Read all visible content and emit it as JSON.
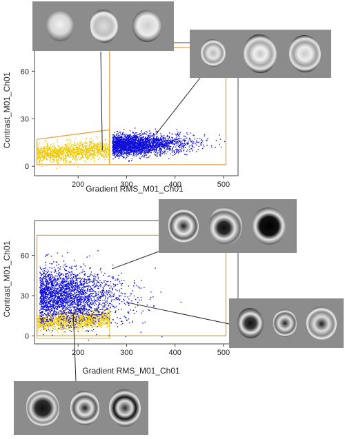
{
  "colors": {
    "gate": "#e8a23a",
    "gate_inner": "#e6d24a",
    "high_series": "#1010d8",
    "low_series": "#f0c800",
    "strip_bg": "#8c8c8c"
  },
  "chart_data": [
    {
      "type": "scatter",
      "title": "",
      "xlabel": "Gradient RMS_M01_Ch01",
      "ylabel": "Contrast_M01_Ch01",
      "xlim": [
        110,
        530
      ],
      "ylim": [
        -6,
        78
      ],
      "xticks": [
        "200",
        "300",
        "400",
        "500"
      ],
      "yticks": [
        "0",
        "30",
        "60"
      ],
      "grid": false,
      "series": [
        {
          "color": "#f0c800",
          "x_range": [
            115,
            265
          ],
          "y_center": 8,
          "density": "medium"
        },
        {
          "color": "#1010d8",
          "x_range": [
            265,
            500
          ],
          "y_center": 14,
          "density": "high"
        }
      ],
      "gates": [
        {
          "color": "#e8a23a",
          "points": [
            [
              115,
              1
            ],
            [
              265,
              1
            ],
            [
              265,
              23
            ],
            [
              115,
              17
            ]
          ]
        },
        {
          "color": "#e8a23a",
          "points": [
            [
              265,
              1
            ],
            [
              505,
              1
            ],
            [
              505,
              75
            ],
            [
              265,
              75
            ]
          ]
        }
      ],
      "image_groups": [
        {
          "cells": 3,
          "style": "bright",
          "target": [
            250,
            10
          ]
        },
        {
          "cells": 3,
          "style": "textured",
          "target": [
            360,
            20
          ]
        }
      ]
    },
    {
      "type": "scatter",
      "title": "",
      "xlabel": "Gradient RMS_M01_Ch01",
      "ylabel": "Contrast_M01_Ch01",
      "xlim": [
        110,
        530
      ],
      "ylim": [
        -6,
        86
      ],
      "xticks": [
        "200",
        "300",
        "400",
        "500"
      ],
      "yticks": [
        "0",
        "30",
        "60"
      ],
      "grid": false,
      "series": [
        {
          "color": "#f0c800",
          "x_range": [
            115,
            265
          ],
          "y_center": 10,
          "density": "medium"
        },
        {
          "color": "#1010d8",
          "x_range": [
            115,
            420
          ],
          "y_center": 30,
          "density": "high"
        }
      ],
      "gates": [
        {
          "color": "#e6d24a",
          "points": [
            [
              115,
              -2
            ],
            [
              265,
              -2
            ],
            [
              265,
              20
            ],
            [
              115,
              15
            ]
          ]
        },
        {
          "color": "#e8a23a",
          "points": [
            [
              115,
              0
            ],
            [
              505,
              0
            ],
            [
              505,
              75
            ],
            [
              115,
              75
            ]
          ]
        }
      ],
      "image_groups": [
        {
          "cells": 3,
          "style": "dark",
          "target": [
            270,
            50
          ]
        },
        {
          "cells": 3,
          "style": "dark",
          "target": [
            300,
            25
          ]
        },
        {
          "cells": 3,
          "style": "dark",
          "target": [
            190,
            17
          ]
        }
      ]
    }
  ]
}
